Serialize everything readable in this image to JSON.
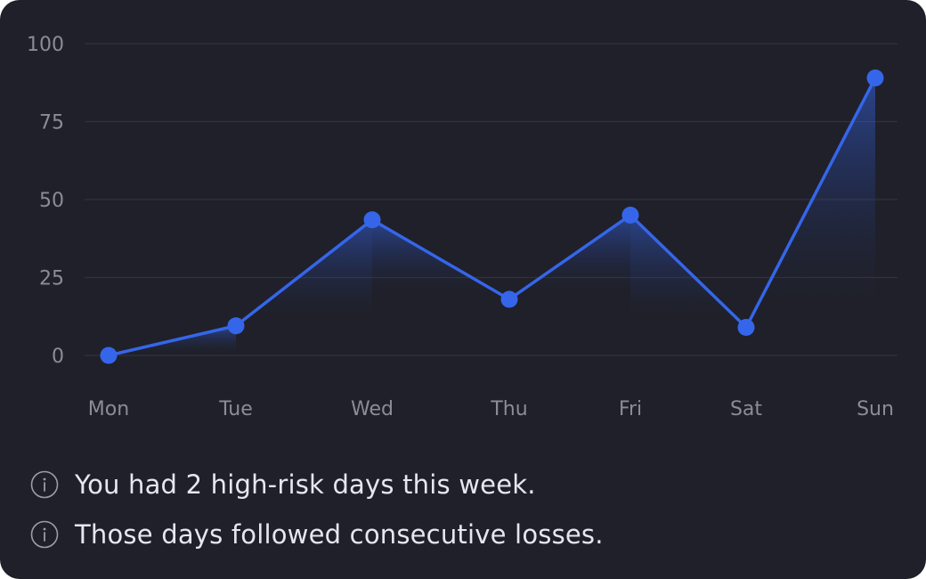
{
  "chart_data": {
    "type": "area",
    "categories": [
      "Mon",
      "Tue",
      "Wed",
      "Thu",
      "Fri",
      "Sat",
      "Sun"
    ],
    "series": [
      {
        "values": [
          0,
          9.5,
          43.5,
          18,
          45,
          9,
          89
        ]
      }
    ],
    "ylim": [
      0,
      100
    ],
    "yticks": [
      0,
      25,
      50,
      75,
      100
    ],
    "grid": true,
    "colors": {
      "line": "#3566ea",
      "point": "#3566ea",
      "grid": "#30323d",
      "tick_label": "#8a8c98",
      "background": "#1f2029"
    }
  },
  "notes": [
    {
      "icon": "info-icon",
      "text": "You had 2 high-risk days this week."
    },
    {
      "icon": "info-icon",
      "text": "Those days followed consecutive losses."
    }
  ]
}
